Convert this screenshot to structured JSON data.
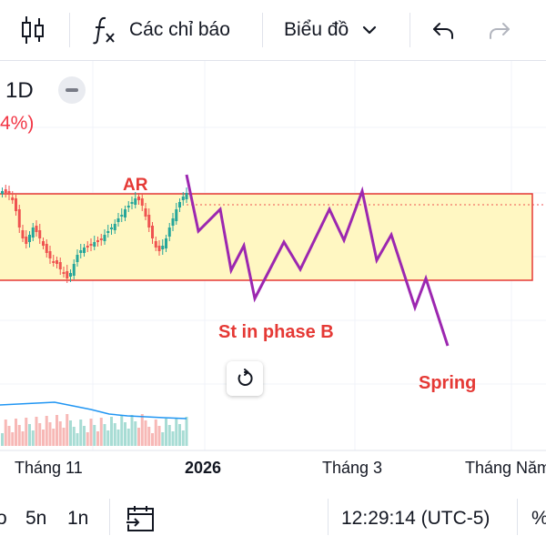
{
  "toolbar": {
    "indicators_label": "Các chỉ báo",
    "chart_type_label": "Biểu đồ"
  },
  "legend": {
    "interval": "1D",
    "change_pct": "4%)"
  },
  "annotations": {
    "ar_label": "AR",
    "st_label": "St in phase B",
    "spring_label": "Spring"
  },
  "time_axis": {
    "labels": [
      "Tháng 11",
      "2026",
      "Tháng 3",
      "Tháng Năm"
    ]
  },
  "bottom_bar": {
    "range_partial": "o",
    "range_5n": "5n",
    "range_1n": "1n",
    "clock": "12:29:14 (UTC-5)",
    "percent": "%"
  },
  "colors": {
    "up": "#26a69a",
    "down": "#ef5350",
    "range_fill": "#fff7c2",
    "range_border": "#e53935",
    "projection": "#9c27b0",
    "annotation": "#e53935"
  }
}
